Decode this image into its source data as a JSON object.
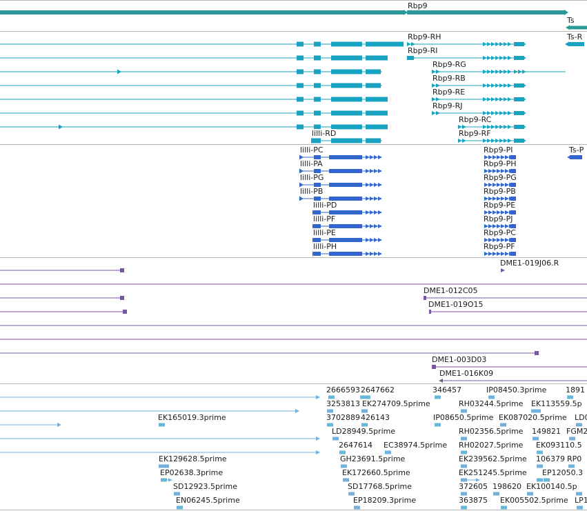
{
  "colors": {
    "gene": "#2a9a9a",
    "transcript": "#1aa3c0",
    "cds": "#3366cc",
    "clone": "#7a55a6",
    "est": "#6fb2da",
    "divider": "#b8b8b8"
  },
  "tracks": {
    "gene": {
      "labels": [
        "Rbp9",
        "Ts"
      ]
    },
    "transcripts": {
      "labels": [
        "Rbp9-RH",
        "Ts-R",
        "Rbp9-RI",
        "Rbp9-RG",
        "Rbp9-RB",
        "Rbp9-RE",
        "Rbp9-RJ",
        "Rbp9-RC",
        "lilli-RD",
        "Rbp9-RF"
      ]
    },
    "cds": {
      "labels": [
        "lilli-PC",
        "Rbp9-PI",
        "Ts-P",
        "lilli-PA",
        "Rbp9-PH",
        "lilli-PG",
        "Rbp9-PG",
        "lilli-PB",
        "Rbp9-PB",
        "lilli-PD",
        "Rbp9-PE",
        "lilli-PF",
        "Rbp9-PJ",
        "lilli-PE",
        "Rbp9-PC",
        "lilli-PH",
        "Rbp9-PF"
      ]
    },
    "clones": {
      "labels": [
        "DME1-019J06.R",
        "DME1-012C05",
        "DME1-019O15",
        "DME1-003D03",
        "DME1-016K09"
      ]
    },
    "ests": {
      "labels": [
        "2666593",
        "2647662",
        "346457",
        "IP08450.3prime",
        "1891",
        "3253813",
        "EK274709.5prime",
        "RH03244.5prime",
        "EK113559.5p",
        "EK165019.3prime",
        "3702889",
        "426143",
        "IP08650.5prime",
        "EK087020.5prime",
        "LD0",
        "LD28949.5prime",
        "RH02356.5prime",
        "149821",
        "FGM2",
        "2647614",
        "EC38974.5prime",
        "RH02027.5prime",
        "EK093110.5",
        "EK129628.5prime",
        "GH23691.5prime",
        "EK239562.5prime",
        "106379",
        "RP0",
        "EP02638.3prime",
        "EK172660.5prime",
        "EK251245.5prime",
        "EP12050.3",
        "SD12923.5prime",
        "SD17768.5prime",
        "372605",
        "198620",
        "EK100140.5p",
        "EN06245.5prime",
        "EP18209.3prime",
        "363875",
        "EK005502.5prime",
        "LP1"
      ]
    }
  }
}
